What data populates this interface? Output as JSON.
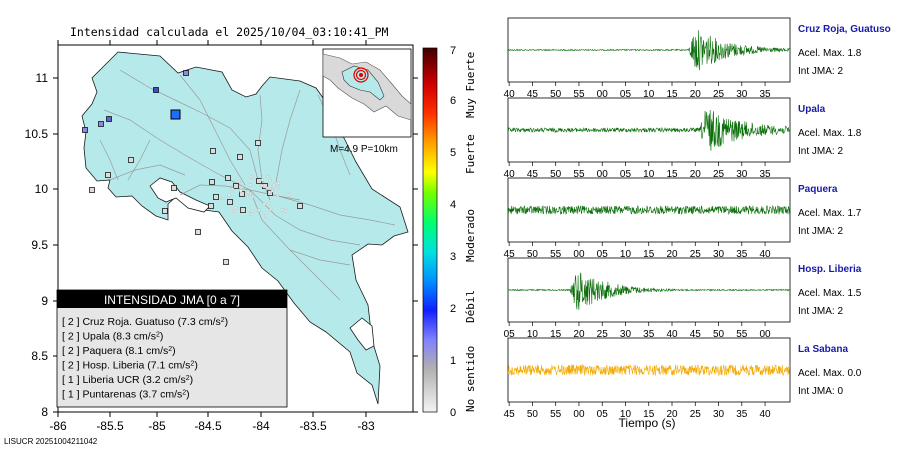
{
  "map": {
    "title": "Intensidad calculada el 2025/10/04_03:10:41_PM",
    "lon_ticks": [
      "-86",
      "-85.5",
      "-85",
      "-84.5",
      "-84",
      "-83.5",
      "-83"
    ],
    "lat_ticks": [
      "11",
      "10.5",
      "10",
      "9.5",
      "9",
      "8.5",
      "8"
    ],
    "inset_text": "M=4.9 P=10km",
    "legend": {
      "title": "INTENSIDAD JMA [0 a 7]",
      "rows": [
        {
          "code": "[ 2 ]",
          "station": "Cruz Roja. Guatuso",
          "value": "(7.3 cm/s",
          "unit_exp": "2",
          ")": ")"
        },
        {
          "code": "[ 2 ]",
          "station": "Upala",
          "value": "(8.3 cm/s",
          "unit_exp": "2"
        },
        {
          "code": "[ 2 ]",
          "station": "Paquera",
          "value": "(8.1 cm/s",
          "unit_exp": "2"
        },
        {
          "code": "[ 2 ]",
          "station": "Hosp. Liberia",
          "value": "(7.1 cm/s",
          "unit_exp": "2"
        },
        {
          "code": "[ 1 ]",
          "station": "Liberia UCR",
          "value": "(3.2 cm/s",
          "unit_exp": "2"
        },
        {
          "code": "[ 1 ]",
          "station": "Puntarenas",
          "value": "(3.7 cm/s",
          "unit_exp": "2"
        }
      ]
    },
    "footer": "LISUCR 20251004211042"
  },
  "colorbar": {
    "ticks": [
      "0",
      "1",
      "2",
      "3",
      "4",
      "5",
      "6",
      "7"
    ],
    "labels": [
      "No sentido",
      "Débil",
      "Moderado",
      "Fuerte",
      "Muy Fuerte"
    ]
  },
  "seismograms": {
    "xlabel": "Tiempo (s)",
    "traces": [
      {
        "station": "Cruz Roja, Guatuso",
        "accel": "Acel. Max. 1.8",
        "jma": "Int JMA: 2",
        "color": "#0a6e0a",
        "name_color": "#1a1aa8",
        "ticks": [
          "40",
          "45",
          "50",
          "55",
          "00",
          "05",
          "10",
          "15",
          "20",
          "25",
          "30",
          "35"
        ],
        "burst": 0.64,
        "quiet": 0.08
      },
      {
        "station": "Upala",
        "accel": "Acel. Max. 1.8",
        "jma": "Int JMA: 2",
        "color": "#0a6e0a",
        "name_color": "#1a1aa8",
        "ticks": [
          "40",
          "45",
          "50",
          "55",
          "00",
          "05",
          "10",
          "15",
          "20",
          "25",
          "30",
          "35"
        ],
        "burst": 0.68,
        "quiet": 0.35
      },
      {
        "station": "Paquera",
        "accel": "Acel. Max. 1.7",
        "jma": "Int JMA: 2",
        "color": "#0a6e0a",
        "name_color": "#1a1aa8",
        "ticks": [
          "45",
          "50",
          "55",
          "00",
          "05",
          "10",
          "15",
          "20",
          "25",
          "30",
          "35",
          "40"
        ],
        "burst": 0.0,
        "quiet": 0.7
      },
      {
        "station": "Hosp. Liberia",
        "accel": "Acel. Max. 1.5",
        "jma": "Int JMA: 2",
        "color": "#0a6e0a",
        "name_color": "#1a1aa8",
        "ticks": [
          "05",
          "10",
          "15",
          "20",
          "25",
          "30",
          "35",
          "40",
          "45",
          "50",
          "55",
          "00"
        ],
        "burst": 0.22,
        "quiet": 0.0
      },
      {
        "station": "La Sabana",
        "accel": "Acel. Max. 0.0",
        "jma": "Int JMA: 0",
        "color": "#f2a900",
        "name_color": "#1a1aa8",
        "ticks": [
          "45",
          "50",
          "55",
          "00",
          "05",
          "10",
          "15",
          "20",
          "25",
          "30",
          "35",
          "40"
        ],
        "burst": 0.0,
        "quiet": 0.9
      }
    ]
  }
}
